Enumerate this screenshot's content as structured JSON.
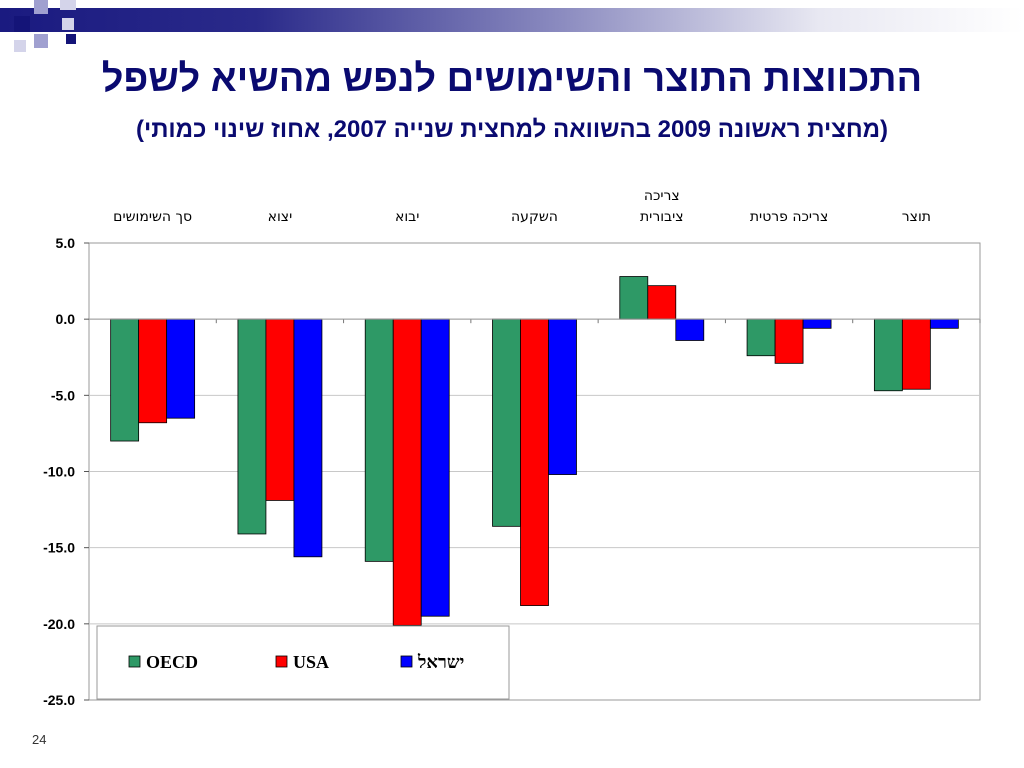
{
  "slide": {
    "title": "התכווצות התוצר והשימושים לנפש מהשיא לשפל",
    "subtitle": "(מחצית ראשונה 2009 בהשוואה למחצית שנייה 2007, אחוז שינוי כמותי)",
    "page_number": "24"
  },
  "colors": {
    "band_navy": "#141478",
    "title": "#0a0a70"
  },
  "chart_data": {
    "type": "bar",
    "categories": [
      [
        "תוצר"
      ],
      [
        "צריכה פרטית"
      ],
      [
        "צריכה",
        "ציבורית"
      ],
      [
        "השקעה"
      ],
      [
        "יבוא"
      ],
      [
        "יצוא"
      ],
      [
        "סך השימושים"
      ]
    ],
    "series": [
      {
        "name": "OECD",
        "color": "#2e9966",
        "values": [
          -4.7,
          -2.4,
          2.8,
          -13.6,
          -15.9,
          -14.1,
          -8.0
        ]
      },
      {
        "name": "USA",
        "color": "#ff0000",
        "values": [
          -4.6,
          -2.9,
          2.2,
          -18.8,
          -20.1,
          -11.9,
          -6.8
        ]
      },
      {
        "name": "ישראל",
        "color": "#0000ff",
        "values": [
          -0.6,
          -0.6,
          -1.4,
          -10.2,
          -19.5,
          -15.6,
          -6.5
        ]
      }
    ],
    "yticks": [
      "5.0",
      "0.0",
      "-5.0",
      "-10.0",
      "-15.0",
      "-20.0",
      "-25.0"
    ],
    "ylim": [
      -25,
      5
    ],
    "category_axis_position": "top",
    "grid": true,
    "legend_position": "bottom-left"
  }
}
